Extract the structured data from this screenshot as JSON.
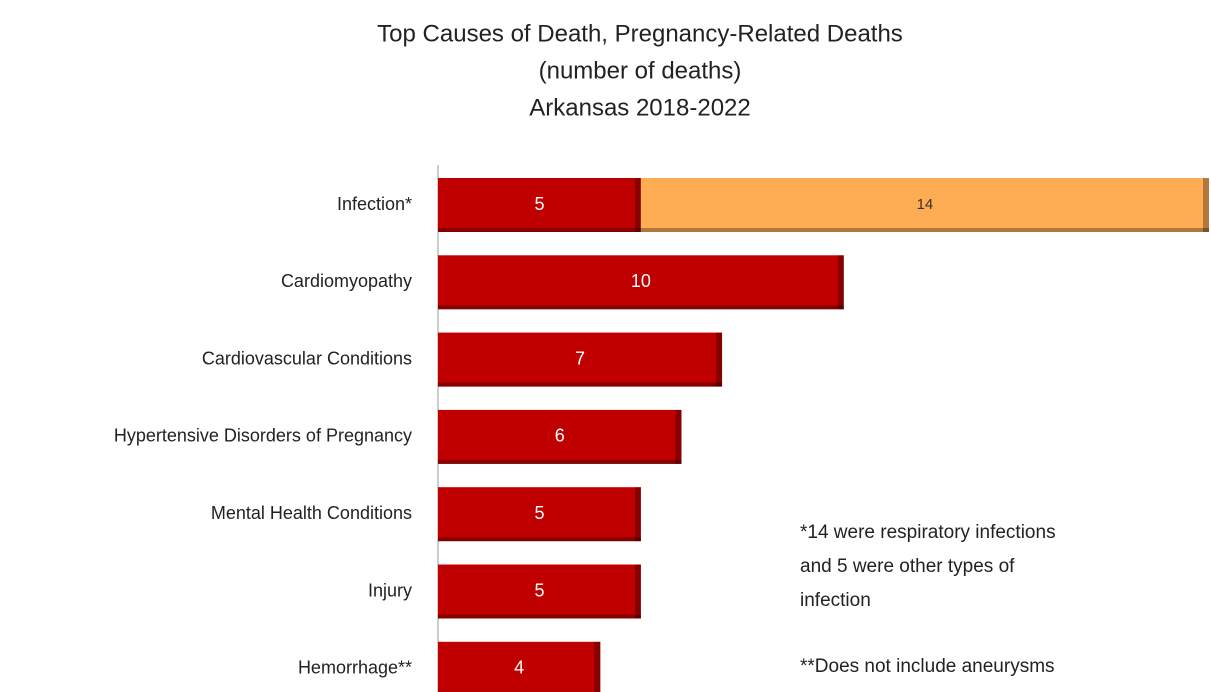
{
  "chart_data": {
    "type": "bar",
    "orientation": "horizontal",
    "stacked": true,
    "title": [
      "Top Causes of Death, Pregnancy-Related Deaths",
      "(number of deaths)",
      "Arkansas 2018-2022"
    ],
    "categories": [
      "Infection*",
      "Cardiomyopathy",
      "Cardiovascular Conditions",
      "Hypertensive Disorders of Pregnancy",
      "Mental Health Conditions",
      "Injury",
      "Hemorrhage**"
    ],
    "series": [
      {
        "color": "#c00000",
        "values": [
          5,
          10,
          7,
          6,
          5,
          5,
          4
        ]
      },
      {
        "color": "#ffad55",
        "values": [
          14,
          null,
          null,
          null,
          null,
          null,
          null
        ]
      }
    ],
    "annotations": [
      [
        "*14  were respiratory infections",
        "and 5 were other types of",
        "infection"
      ],
      [
        "**Does not include aneurysms"
      ]
    ]
  }
}
